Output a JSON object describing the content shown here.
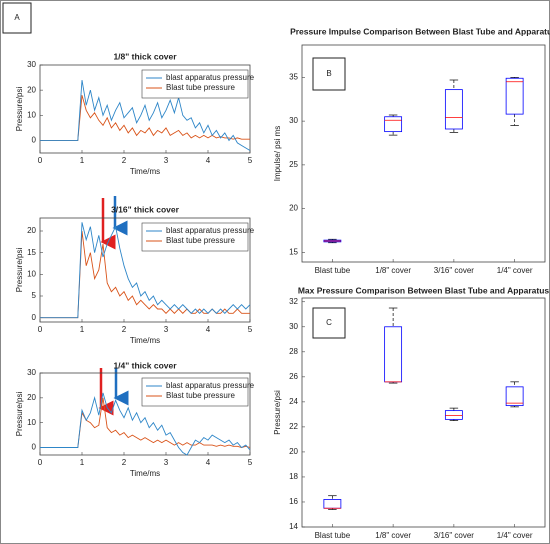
{
  "chart_data": [
    {
      "type": "line",
      "panel_label": "A",
      "title": "1/8\" thick cover",
      "xlabel": "Time/ms",
      "ylabel": "Pressure/psi",
      "xlim": [
        0,
        5
      ],
      "xticks": [
        0,
        1,
        2,
        3,
        4,
        5
      ],
      "ylim": [
        -5,
        30
      ],
      "yticks": [
        0,
        10,
        20,
        30
      ],
      "legend": "northeast",
      "x": [
        0,
        0.1,
        0.2,
        0.3,
        0.4,
        0.5,
        0.6,
        0.7,
        0.8,
        0.9,
        1,
        1.1,
        1.2,
        1.3,
        1.4,
        1.5,
        1.6,
        1.7,
        1.8,
        1.9,
        2,
        2.1,
        2.2,
        2.3,
        2.4,
        2.5,
        2.6,
        2.7,
        2.8,
        2.9,
        3,
        3.1,
        3.2,
        3.3,
        3.4,
        3.5,
        3.6,
        3.7,
        3.8,
        3.9,
        4,
        4.1,
        4.2,
        4.3,
        4.4,
        4.5,
        4.6,
        4.7,
        4.8,
        4.9,
        5
      ],
      "series": [
        {
          "name": "blast apparatus pressure",
          "color": "#2e86c8",
          "values": [
            0,
            0,
            0,
            0,
            0,
            0,
            0,
            0,
            0,
            0,
            24,
            14,
            20,
            12,
            17,
            10,
            14,
            8,
            12,
            15,
            9,
            11,
            13,
            7,
            10,
            14,
            8,
            11,
            15,
            9,
            12,
            16,
            11,
            17,
            10,
            8,
            9,
            5,
            7,
            3,
            6,
            2,
            4,
            1,
            3,
            0,
            2,
            -1,
            -2,
            -3,
            -4
          ]
        },
        {
          "name": "Blast tube pressure",
          "color": "#d95319",
          "values": [
            0,
            0,
            0,
            0,
            0,
            0,
            0,
            0,
            0,
            0,
            18,
            12,
            9,
            11,
            8,
            6,
            9,
            5,
            7,
            4,
            6,
            3,
            5,
            2,
            4,
            3,
            5,
            2,
            4,
            3,
            5,
            2,
            3,
            4,
            2,
            3,
            1,
            2,
            1,
            2,
            1,
            2,
            1,
            1.5,
            1,
            1,
            0.5,
            1,
            0.5,
            0.5,
            0.5
          ]
        }
      ]
    },
    {
      "type": "line",
      "title": "3/16\" thick cover",
      "xlabel": "Time/ms",
      "ylabel": "Pressure/psi",
      "xlim": [
        0,
        5
      ],
      "xticks": [
        0,
        1,
        2,
        3,
        4,
        5
      ],
      "ylim": [
        -1,
        23
      ],
      "yticks": [
        0,
        5,
        10,
        15,
        20
      ],
      "legend": "northeast",
      "x": [
        0,
        0.1,
        0.2,
        0.3,
        0.4,
        0.5,
        0.6,
        0.7,
        0.8,
        0.9,
        1,
        1.1,
        1.2,
        1.3,
        1.4,
        1.5,
        1.6,
        1.7,
        1.8,
        1.9,
        2,
        2.1,
        2.2,
        2.3,
        2.4,
        2.5,
        2.6,
        2.7,
        2.8,
        2.9,
        3,
        3.1,
        3.2,
        3.3,
        3.4,
        3.5,
        3.6,
        3.7,
        3.8,
        3.9,
        4,
        4.1,
        4.2,
        4.3,
        4.4,
        4.5,
        4.6,
        4.7,
        4.8,
        4.9,
        5
      ],
      "series": [
        {
          "name": "blast apparatus pressure",
          "color": "#2e86c8",
          "values": [
            0,
            0,
            0,
            0,
            0,
            0,
            0,
            0,
            0,
            0,
            22,
            18,
            21,
            15,
            19,
            14,
            17,
            19,
            21,
            16,
            12,
            9,
            7,
            8,
            5,
            6,
            4,
            5,
            3,
            4,
            3,
            2,
            3,
            2,
            3,
            2,
            1,
            2,
            1,
            2,
            1,
            2,
            1,
            2,
            1,
            2,
            3,
            2,
            3,
            2,
            3
          ]
        },
        {
          "name": "Blast tube pressure",
          "color": "#d95319",
          "values": [
            0,
            0,
            0,
            0,
            0,
            0,
            0,
            0,
            0,
            0,
            20,
            12,
            15,
            9,
            11,
            17,
            8,
            6,
            7,
            5,
            6,
            4,
            5,
            3,
            4,
            3,
            2,
            3,
            2,
            2,
            1,
            2,
            1,
            2,
            1,
            2,
            1,
            1,
            2,
            1,
            1,
            2,
            1,
            1,
            2,
            1,
            1,
            2,
            1,
            1,
            1
          ]
        }
      ]
    },
    {
      "type": "line",
      "title": "1/4\" thick cover",
      "xlabel": "Time/ms",
      "ylabel": "Pressure/psi",
      "xlim": [
        0,
        5
      ],
      "xticks": [
        0,
        1,
        2,
        3,
        4,
        5
      ],
      "ylim": [
        -3,
        30
      ],
      "yticks": [
        0,
        10,
        20,
        30
      ],
      "legend": "northeast",
      "x": [
        0,
        0.1,
        0.2,
        0.3,
        0.4,
        0.5,
        0.6,
        0.7,
        0.8,
        0.9,
        1,
        1.1,
        1.2,
        1.3,
        1.4,
        1.5,
        1.6,
        1.7,
        1.8,
        1.9,
        2,
        2.1,
        2.2,
        2.3,
        2.4,
        2.5,
        2.6,
        2.7,
        2.8,
        2.9,
        3,
        3.1,
        3.2,
        3.3,
        3.4,
        3.5,
        3.6,
        3.7,
        3.8,
        3.9,
        4,
        4.1,
        4.2,
        4.3,
        4.4,
        4.5,
        4.6,
        4.7,
        4.8,
        4.9,
        5
      ],
      "series": [
        {
          "name": "blast apparatus pressure",
          "color": "#2e86c8",
          "values": [
            0,
            0,
            0,
            0,
            0,
            0,
            0,
            0,
            0,
            0,
            15,
            11,
            14,
            20,
            13,
            22,
            16,
            14,
            19,
            15,
            12,
            16,
            11,
            14,
            10,
            12,
            8,
            10,
            7,
            9,
            5,
            6,
            3,
            0,
            -2,
            -3,
            0,
            3,
            2,
            4,
            3,
            5,
            4,
            3,
            2,
            3,
            1,
            2,
            0,
            1,
            -1
          ]
        },
        {
          "name": "Blast tube pressure",
          "color": "#d95319",
          "values": [
            0,
            0,
            0,
            0,
            0,
            0,
            0,
            0,
            0,
            0,
            14,
            11,
            10,
            8,
            9,
            20,
            8,
            6,
            7,
            5,
            6,
            4,
            5,
            4,
            3,
            4,
            3,
            2,
            3,
            2,
            3,
            2,
            1,
            2,
            1,
            2,
            1,
            1,
            2,
            1,
            1,
            1,
            0.5,
            1,
            0.5,
            1,
            0.5,
            0.5,
            0,
            0.5,
            0
          ]
        }
      ]
    },
    {
      "type": "box",
      "panel_label": "B",
      "title": "Pressure Impulse Comparison Between Blast Tube and Apparatus",
      "ylabel": "Impulse/ psi ms",
      "categories": [
        "Blast tube",
        "1/8\" cover",
        "3/16\" cover",
        "1/4\" cover"
      ],
      "ylim": [
        13.9,
        38.7
      ],
      "yticks": [
        15,
        20,
        25,
        30,
        35
      ],
      "color": "#0000ff",
      "median_color": "#ff0000",
      "min": [
        16.1,
        28.4,
        28.7,
        29.5
      ],
      "q1": [
        16.2,
        28.8,
        29.1,
        30.8
      ],
      "median": [
        16.3,
        30.1,
        30.4,
        34.5
      ],
      "q3": [
        16.4,
        30.5,
        33.6,
        34.9
      ],
      "max": [
        16.5,
        30.7,
        34.7,
        35.0
      ]
    },
    {
      "type": "box",
      "panel_label": "C",
      "title": "Max Pressure Comparison Between Blast Tube and Apparatus",
      "ylabel": "Pressure/psi",
      "categories": [
        "Blast tube",
        "1/8\" cover",
        "3/16\" cover",
        "1/4\" cover"
      ],
      "ylim": [
        14,
        32.3
      ],
      "yticks": [
        14,
        16,
        18,
        20,
        22,
        24,
        26,
        28,
        30,
        32
      ],
      "color": "#0000ff",
      "median_color": "#ff0000",
      "min": [
        15.4,
        25.5,
        22.5,
        23.6
      ],
      "q1": [
        15.5,
        25.6,
        22.6,
        23.7
      ],
      "median": [
        15.5,
        25.6,
        22.9,
        23.9
      ],
      "q3": [
        16.2,
        30.0,
        23.3,
        25.2
      ],
      "max": [
        16.5,
        31.5,
        23.5,
        25.6
      ]
    }
  ]
}
